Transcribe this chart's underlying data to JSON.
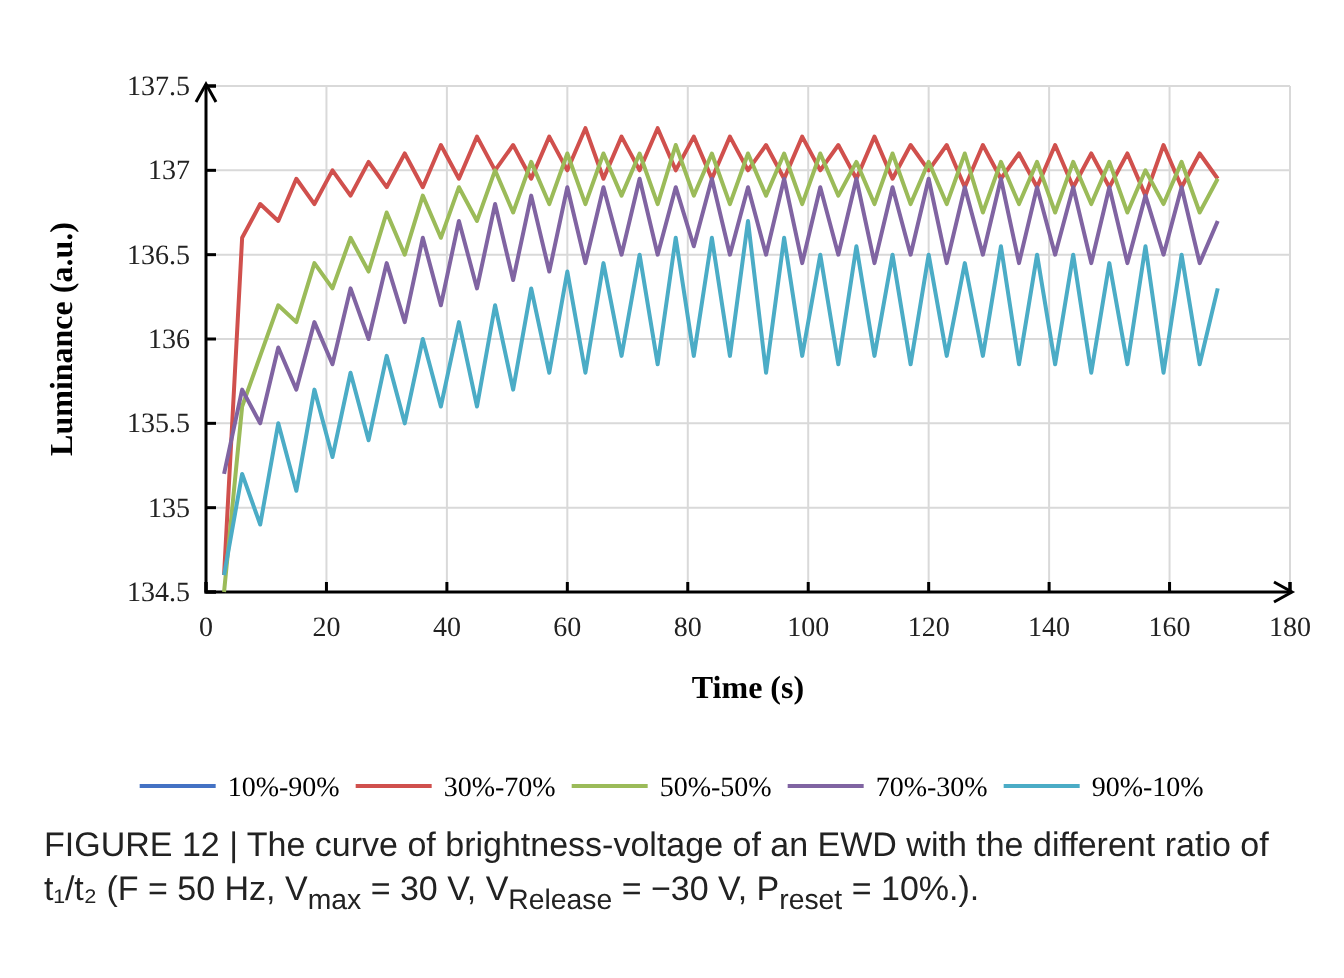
{
  "chart_data": {
    "type": "line",
    "xlabel": "Time (s)",
    "ylabel": "Luminance (a.u.)",
    "annotations": [
      "FIGURE 12 | The curve of brightness-voltage of an EWD with the different ratio of t₁/t₂ (F = 50 Hz, V$_{max}$ = 30 V, V$_{Release}$ = −30 V, P$_{reset}$ = 10%.)."
    ],
    "x": [
      3,
      6,
      9,
      12,
      15,
      18,
      21,
      24,
      27,
      30,
      33,
      36,
      39,
      42,
      45,
      48,
      51,
      54,
      57,
      60,
      63,
      66,
      69,
      72,
      75,
      78,
      81,
      84,
      87,
      90,
      93,
      96,
      99,
      102,
      105,
      108,
      111,
      114,
      117,
      120,
      123,
      126,
      129,
      132,
      135,
      138,
      141,
      144,
      147,
      150,
      153,
      156,
      159,
      162,
      165,
      168
    ],
    "xlim": [
      0,
      180
    ],
    "xticks": [
      0,
      20,
      40,
      60,
      80,
      100,
      120,
      140,
      160,
      180
    ],
    "ylim": [
      134.5,
      137.5
    ],
    "yticks": [
      134.5,
      135,
      135.5,
      136,
      136.5,
      137,
      137.5
    ],
    "grid": true,
    "legend": "bottom",
    "line_style": "solid",
    "series": [
      {
        "name": "10%-90%",
        "color": "#4472c4",
        "values": [
          null,
          null,
          null,
          null,
          null,
          null,
          null,
          null,
          null,
          null,
          null,
          null,
          null,
          null,
          null,
          null,
          null,
          null,
          null,
          null,
          null,
          null,
          null,
          null,
          null,
          null,
          null,
          null,
          null,
          null,
          null,
          null,
          null,
          null,
          null,
          null,
          null,
          null,
          null,
          null,
          null,
          null,
          null,
          null,
          null,
          null,
          null,
          null,
          null,
          null,
          null,
          null,
          null,
          null,
          null,
          null
        ]
      },
      {
        "name": "30%-70%",
        "color": "#d0504d",
        "values": [
          134.6,
          136.6,
          136.8,
          136.7,
          136.95,
          136.8,
          137.0,
          136.85,
          137.05,
          136.9,
          137.1,
          136.9,
          137.15,
          136.95,
          137.2,
          137.0,
          137.15,
          136.95,
          137.2,
          137.0,
          137.25,
          136.95,
          137.2,
          137.0,
          137.25,
          137.0,
          137.2,
          136.95,
          137.2,
          137.0,
          137.15,
          136.95,
          137.2,
          137.0,
          137.15,
          136.95,
          137.2,
          136.95,
          137.15,
          137.0,
          137.15,
          136.9,
          137.15,
          136.95,
          137.1,
          136.9,
          137.15,
          136.9,
          137.1,
          136.9,
          137.1,
          136.85,
          137.15,
          136.9,
          137.1,
          136.95
        ]
      },
      {
        "name": "50%-50%",
        "color": "#9bbb59",
        "values": [
          134.5,
          135.6,
          135.9,
          136.2,
          136.1,
          136.45,
          136.3,
          136.6,
          136.4,
          136.75,
          136.5,
          136.85,
          136.6,
          136.9,
          136.7,
          137.0,
          136.75,
          137.05,
          136.8,
          137.1,
          136.8,
          137.1,
          136.85,
          137.1,
          136.8,
          137.15,
          136.85,
          137.1,
          136.8,
          137.1,
          136.85,
          137.1,
          136.8,
          137.1,
          136.85,
          137.05,
          136.8,
          137.1,
          136.8,
          137.05,
          136.8,
          137.1,
          136.75,
          137.05,
          136.8,
          137.05,
          136.75,
          137.05,
          136.8,
          137.05,
          136.75,
          137.0,
          136.8,
          137.05,
          136.75,
          136.95
        ]
      },
      {
        "name": "70%-30%",
        "color": "#8064a2",
        "values": [
          135.2,
          135.7,
          135.5,
          135.95,
          135.7,
          136.1,
          135.85,
          136.3,
          136.0,
          136.45,
          136.1,
          136.6,
          136.2,
          136.7,
          136.3,
          136.8,
          136.35,
          136.85,
          136.4,
          136.9,
          136.45,
          136.9,
          136.5,
          136.95,
          136.5,
          136.9,
          136.55,
          136.95,
          136.5,
          136.9,
          136.5,
          136.95,
          136.45,
          136.9,
          136.5,
          136.95,
          136.45,
          136.9,
          136.5,
          136.95,
          136.45,
          136.9,
          136.5,
          136.95,
          136.45,
          136.9,
          136.5,
          136.9,
          136.45,
          136.9,
          136.45,
          136.85,
          136.5,
          136.9,
          136.45,
          136.7
        ]
      },
      {
        "name": "90%-10%",
        "color": "#4bacc6",
        "values": [
          134.6,
          135.2,
          134.9,
          135.5,
          135.1,
          135.7,
          135.3,
          135.8,
          135.4,
          135.9,
          135.5,
          136.0,
          135.6,
          136.1,
          135.6,
          136.2,
          135.7,
          136.3,
          135.8,
          136.4,
          135.8,
          136.45,
          135.9,
          136.5,
          135.85,
          136.6,
          135.9,
          136.6,
          135.9,
          136.7,
          135.8,
          136.6,
          135.9,
          136.5,
          135.85,
          136.55,
          135.9,
          136.5,
          135.85,
          136.5,
          135.9,
          136.45,
          135.9,
          136.55,
          135.85,
          136.5,
          135.85,
          136.5,
          135.8,
          136.45,
          135.85,
          136.55,
          135.8,
          136.5,
          135.85,
          136.3
        ]
      }
    ]
  }
}
